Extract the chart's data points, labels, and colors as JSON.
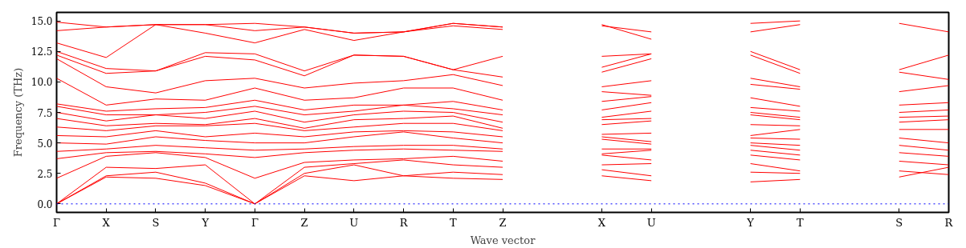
{
  "chart_data": {
    "type": "line",
    "ylabel": "Frequency (THz)",
    "xlabel": "Wave vector",
    "categories": [
      "Γ",
      "X",
      "S",
      "Y",
      "Γ",
      "Z",
      "U",
      "R",
      "T",
      "Z",
      null,
      "X",
      "U",
      null,
      "Y",
      "T",
      null,
      "S",
      "R"
    ],
    "ylim": [
      -0.7,
      15.7
    ],
    "yticks": [
      {
        "value": 0,
        "label": "0.0"
      },
      {
        "value": 2.5,
        "label": "2.5"
      },
      {
        "value": 5,
        "label": "5.0"
      },
      {
        "value": 7.5,
        "label": "7.5"
      },
      {
        "value": 10,
        "label": "10.0"
      },
      {
        "value": 12.5,
        "label": "12.5"
      },
      {
        "value": 15,
        "label": "15.0"
      }
    ],
    "grid": false,
    "line_style": "solid",
    "ref_lines": [
      {
        "axis": "y",
        "value": 0,
        "color": "#0000ff",
        "line_style": "dotted"
      }
    ],
    "series": [
      {
        "color": "#ff0000",
        "values": [
          0,
          2.2,
          2.1,
          1.5,
          0,
          2.3,
          1.9,
          2.3,
          2.1,
          2.0,
          null,
          null,
          null,
          null,
          null,
          null,
          null,
          null,
          null
        ]
      },
      {
        "color": "#ff0000",
        "values": [
          0,
          2.3,
          2.6,
          1.7,
          0,
          2.5,
          3.2,
          2.3,
          2.6,
          2.4,
          null,
          null,
          null,
          null,
          null,
          null,
          null,
          null,
          null
        ]
      },
      {
        "color": "#ff0000",
        "values": [
          0,
          3.0,
          2.9,
          3.2,
          0,
          3.0,
          3.3,
          3.6,
          3.2,
          3.0,
          null,
          null,
          null,
          null,
          null,
          null,
          null,
          null,
          null
        ]
      },
      {
        "color": "#ff0000",
        "values": [
          2.1,
          3.9,
          4.2,
          3.8,
          2.1,
          3.4,
          3.6,
          3.7,
          3.9,
          3.5,
          null,
          null,
          null,
          null,
          null,
          null,
          null,
          null,
          null
        ]
      },
      {
        "color": "#ff0000",
        "values": [
          3.7,
          4.2,
          4.3,
          4.1,
          3.8,
          4.2,
          4.4,
          4.5,
          4.4,
          4.3,
          null,
          null,
          null,
          null,
          null,
          null,
          null,
          null,
          null
        ]
      },
      {
        "color": "#ff0000",
        "values": [
          4.3,
          4.5,
          4.8,
          4.6,
          4.4,
          4.5,
          4.7,
          4.8,
          4.8,
          4.5,
          null,
          null,
          null,
          null,
          null,
          null,
          null,
          null,
          null
        ]
      },
      {
        "color": "#ff0000",
        "values": [
          5.0,
          4.9,
          5.5,
          5.2,
          5.0,
          5.0,
          5.5,
          5.9,
          5.4,
          5.0,
          null,
          null,
          null,
          null,
          null,
          null,
          null,
          null,
          null
        ]
      },
      {
        "color": "#ff0000",
        "values": [
          5.6,
          5.5,
          6.0,
          5.5,
          5.8,
          5.5,
          5.9,
          6.0,
          5.9,
          5.5,
          null,
          null,
          null,
          null,
          null,
          null,
          null,
          null,
          null
        ]
      },
      {
        "color": "#ff0000",
        "values": [
          6.3,
          6.0,
          6.4,
          6.4,
          6.6,
          6.0,
          6.3,
          6.6,
          6.6,
          6.0,
          null,
          null,
          null,
          null,
          null,
          null,
          null,
          null,
          null
        ]
      },
      {
        "color": "#ff0000",
        "values": [
          7.0,
          6.4,
          6.6,
          6.5,
          7.0,
          6.2,
          6.9,
          7.0,
          7.2,
          6.2,
          null,
          null,
          null,
          null,
          null,
          null,
          null,
          null,
          null
        ]
      },
      {
        "color": "#ff0000",
        "values": [
          7.5,
          6.8,
          7.3,
          7.0,
          7.6,
          6.7,
          7.3,
          7.6,
          7.5,
          6.7,
          null,
          null,
          null,
          null,
          null,
          null,
          null,
          null,
          null
        ]
      },
      {
        "color": "#ff0000",
        "values": [
          8.0,
          7.3,
          7.3,
          7.5,
          8.0,
          7.3,
          7.6,
          8.1,
          7.8,
          7.3,
          null,
          null,
          null,
          null,
          null,
          null,
          null,
          null,
          null
        ]
      },
      {
        "color": "#ff0000",
        "values": [
          8.2,
          7.6,
          7.8,
          7.9,
          8.5,
          7.7,
          8.1,
          8.1,
          8.4,
          7.7,
          null,
          null,
          null,
          null,
          null,
          null,
          null,
          null,
          null
        ]
      },
      {
        "color": "#ff0000",
        "values": [
          10.3,
          8.1,
          8.6,
          8.5,
          9.5,
          8.5,
          8.7,
          9.5,
          9.5,
          8.5,
          null,
          null,
          null,
          null,
          null,
          null,
          null,
          null,
          null
        ]
      },
      {
        "color": "#ff0000",
        "values": [
          11.9,
          9.6,
          9.1,
          10.1,
          10.3,
          9.5,
          9.9,
          10.1,
          10.6,
          9.7,
          null,
          null,
          null,
          null,
          null,
          null,
          null,
          null,
          null
        ]
      },
      {
        "color": "#ff0000",
        "values": [
          12.2,
          10.7,
          10.9,
          12.1,
          11.8,
          10.5,
          12.2,
          12.1,
          11.0,
          10.4,
          null,
          null,
          null,
          null,
          null,
          null,
          null,
          null,
          null
        ]
      },
      {
        "color": "#ff0000",
        "values": [
          12.5,
          11.1,
          10.9,
          12.4,
          12.3,
          10.9,
          12.2,
          12.1,
          11.0,
          12.1,
          null,
          null,
          null,
          null,
          null,
          null,
          null,
          null,
          null
        ]
      },
      {
        "color": "#ff0000",
        "values": [
          13.2,
          12.0,
          14.7,
          14.0,
          13.2,
          14.3,
          13.4,
          14.1,
          14.6,
          14.3,
          null,
          null,
          null,
          null,
          null,
          null,
          null,
          null,
          null
        ]
      },
      {
        "color": "#ff0000",
        "values": [
          14.2,
          14.5,
          14.7,
          14.7,
          14.2,
          14.5,
          14.0,
          14.1,
          14.8,
          14.5,
          null,
          null,
          null,
          null,
          null,
          null,
          null,
          null,
          null
        ]
      },
      {
        "color": "#ff0000",
        "values": [
          14.9,
          14.5,
          14.7,
          14.7,
          14.8,
          14.5,
          14.0,
          14.1,
          14.8,
          14.5,
          null,
          null,
          null,
          null,
          null,
          null,
          null,
          null,
          null
        ]
      },
      {
        "color": "#ff0000",
        "values": [
          null,
          null,
          null,
          null,
          null,
          null,
          null,
          null,
          null,
          null,
          null,
          2.3,
          1.9,
          null,
          null,
          null,
          null,
          null,
          null
        ]
      },
      {
        "color": "#ff0000",
        "values": [
          null,
          null,
          null,
          null,
          null,
          null,
          null,
          null,
          null,
          null,
          null,
          2.8,
          2.3,
          null,
          null,
          null,
          null,
          null,
          null
        ]
      },
      {
        "color": "#ff0000",
        "values": [
          null,
          null,
          null,
          null,
          null,
          null,
          null,
          null,
          null,
          null,
          null,
          3.2,
          3.3,
          null,
          null,
          null,
          null,
          null,
          null
        ]
      },
      {
        "color": "#ff0000",
        "values": [
          null,
          null,
          null,
          null,
          null,
          null,
          null,
          null,
          null,
          null,
          null,
          4.0,
          3.6,
          null,
          null,
          null,
          null,
          null,
          null
        ]
      },
      {
        "color": "#ff0000",
        "values": [
          null,
          null,
          null,
          null,
          null,
          null,
          null,
          null,
          null,
          null,
          null,
          4.1,
          4.4,
          null,
          null,
          null,
          null,
          null,
          null
        ]
      },
      {
        "color": "#ff0000",
        "values": [
          null,
          null,
          null,
          null,
          null,
          null,
          null,
          null,
          null,
          null,
          null,
          4.5,
          4.5,
          null,
          null,
          null,
          null,
          null,
          null
        ]
      },
      {
        "color": "#ff0000",
        "values": [
          null,
          null,
          null,
          null,
          null,
          null,
          null,
          null,
          null,
          null,
          null,
          5.3,
          4.9,
          null,
          null,
          null,
          null,
          null,
          null
        ]
      },
      {
        "color": "#ff0000",
        "values": [
          null,
          null,
          null,
          null,
          null,
          null,
          null,
          null,
          null,
          null,
          null,
          5.5,
          5.1,
          null,
          null,
          null,
          null,
          null,
          null
        ]
      },
      {
        "color": "#ff0000",
        "values": [
          null,
          null,
          null,
          null,
          null,
          null,
          null,
          null,
          null,
          null,
          null,
          5.7,
          5.8,
          null,
          null,
          null,
          null,
          null,
          null
        ]
      },
      {
        "color": "#ff0000",
        "values": [
          null,
          null,
          null,
          null,
          null,
          null,
          null,
          null,
          null,
          null,
          null,
          6.5,
          6.8,
          null,
          null,
          null,
          null,
          null,
          null
        ]
      },
      {
        "color": "#ff0000",
        "values": [
          null,
          null,
          null,
          null,
          null,
          null,
          null,
          null,
          null,
          null,
          null,
          6.9,
          7.0,
          null,
          null,
          null,
          null,
          null,
          null
        ]
      },
      {
        "color": "#ff0000",
        "values": [
          null,
          null,
          null,
          null,
          null,
          null,
          null,
          null,
          null,
          null,
          null,
          7.1,
          7.6,
          null,
          null,
          null,
          null,
          null,
          null
        ]
      },
      {
        "color": "#ff0000",
        "values": [
          null,
          null,
          null,
          null,
          null,
          null,
          null,
          null,
          null,
          null,
          null,
          7.7,
          8.3,
          null,
          null,
          null,
          null,
          null,
          null
        ]
      },
      {
        "color": "#ff0000",
        "values": [
          null,
          null,
          null,
          null,
          null,
          null,
          null,
          null,
          null,
          null,
          null,
          8.4,
          8.8,
          null,
          null,
          null,
          null,
          null,
          null
        ]
      },
      {
        "color": "#ff0000",
        "values": [
          null,
          null,
          null,
          null,
          null,
          null,
          null,
          null,
          null,
          null,
          null,
          9.2,
          8.9,
          null,
          null,
          null,
          null,
          null,
          null
        ]
      },
      {
        "color": "#ff0000",
        "values": [
          null,
          null,
          null,
          null,
          null,
          null,
          null,
          null,
          null,
          null,
          null,
          9.6,
          10.1,
          null,
          null,
          null,
          null,
          null,
          null
        ]
      },
      {
        "color": "#ff0000",
        "values": [
          null,
          null,
          null,
          null,
          null,
          null,
          null,
          null,
          null,
          null,
          null,
          10.8,
          11.9,
          null,
          null,
          null,
          null,
          null,
          null
        ]
      },
      {
        "color": "#ff0000",
        "values": [
          null,
          null,
          null,
          null,
          null,
          null,
          null,
          null,
          null,
          null,
          null,
          11.2,
          12.3,
          null,
          null,
          null,
          null,
          null,
          null
        ]
      },
      {
        "color": "#ff0000",
        "values": [
          null,
          null,
          null,
          null,
          null,
          null,
          null,
          null,
          null,
          null,
          null,
          12.1,
          12.3,
          null,
          null,
          null,
          null,
          null,
          null
        ]
      },
      {
        "color": "#ff0000",
        "values": [
          null,
          null,
          null,
          null,
          null,
          null,
          null,
          null,
          null,
          null,
          null,
          14.7,
          13.5,
          null,
          null,
          null,
          null,
          null,
          null
        ]
      },
      {
        "color": "#ff0000",
        "values": [
          null,
          null,
          null,
          null,
          null,
          null,
          null,
          null,
          null,
          null,
          null,
          14.6,
          14.1,
          null,
          null,
          null,
          null,
          null,
          null
        ]
      },
      {
        "color": "#ff0000",
        "values": [
          null,
          null,
          null,
          null,
          null,
          null,
          null,
          null,
          null,
          null,
          null,
          null,
          null,
          null,
          1.8,
          2.0,
          null,
          null,
          null
        ]
      },
      {
        "color": "#ff0000",
        "values": [
          null,
          null,
          null,
          null,
          null,
          null,
          null,
          null,
          null,
          null,
          null,
          null,
          null,
          null,
          2.6,
          2.5,
          null,
          null,
          null
        ]
      },
      {
        "color": "#ff0000",
        "values": [
          null,
          null,
          null,
          null,
          null,
          null,
          null,
          null,
          null,
          null,
          null,
          null,
          null,
          null,
          3.3,
          2.7,
          null,
          null,
          null
        ]
      },
      {
        "color": "#ff0000",
        "values": [
          null,
          null,
          null,
          null,
          null,
          null,
          null,
          null,
          null,
          null,
          null,
          null,
          null,
          null,
          4.0,
          3.6,
          null,
          null,
          null
        ]
      },
      {
        "color": "#ff0000",
        "values": [
          null,
          null,
          null,
          null,
          null,
          null,
          null,
          null,
          null,
          null,
          null,
          null,
          null,
          null,
          4.4,
          4.0,
          null,
          null,
          null
        ]
      },
      {
        "color": "#ff0000",
        "values": [
          null,
          null,
          null,
          null,
          null,
          null,
          null,
          null,
          null,
          null,
          null,
          null,
          null,
          null,
          4.8,
          4.4,
          null,
          null,
          null
        ]
      },
      {
        "color": "#ff0000",
        "values": [
          null,
          null,
          null,
          null,
          null,
          null,
          null,
          null,
          null,
          null,
          null,
          null,
          null,
          null,
          5.0,
          4.8,
          null,
          null,
          null
        ]
      },
      {
        "color": "#ff0000",
        "values": [
          null,
          null,
          null,
          null,
          null,
          null,
          null,
          null,
          null,
          null,
          null,
          null,
          null,
          null,
          5.4,
          5.3,
          null,
          null,
          null
        ]
      },
      {
        "color": "#ff0000",
        "values": [
          null,
          null,
          null,
          null,
          null,
          null,
          null,
          null,
          null,
          null,
          null,
          null,
          null,
          null,
          5.6,
          6.1,
          null,
          null,
          null
        ]
      },
      {
        "color": "#ff0000",
        "values": [
          null,
          null,
          null,
          null,
          null,
          null,
          null,
          null,
          null,
          null,
          null,
          null,
          null,
          null,
          6.5,
          6.4,
          null,
          null,
          null
        ]
      },
      {
        "color": "#ff0000",
        "values": [
          null,
          null,
          null,
          null,
          null,
          null,
          null,
          null,
          null,
          null,
          null,
          null,
          null,
          null,
          7.3,
          6.9,
          null,
          null,
          null
        ]
      },
      {
        "color": "#ff0000",
        "values": [
          null,
          null,
          null,
          null,
          null,
          null,
          null,
          null,
          null,
          null,
          null,
          null,
          null,
          null,
          7.5,
          7.1,
          null,
          null,
          null
        ]
      },
      {
        "color": "#ff0000",
        "values": [
          null,
          null,
          null,
          null,
          null,
          null,
          null,
          null,
          null,
          null,
          null,
          null,
          null,
          null,
          7.9,
          7.6,
          null,
          null,
          null
        ]
      },
      {
        "color": "#ff0000",
        "values": [
          null,
          null,
          null,
          null,
          null,
          null,
          null,
          null,
          null,
          null,
          null,
          null,
          null,
          null,
          8.7,
          8.0,
          null,
          null,
          null
        ]
      },
      {
        "color": "#ff0000",
        "values": [
          null,
          null,
          null,
          null,
          null,
          null,
          null,
          null,
          null,
          null,
          null,
          null,
          null,
          null,
          9.8,
          9.4,
          null,
          null,
          null
        ]
      },
      {
        "color": "#ff0000",
        "values": [
          null,
          null,
          null,
          null,
          null,
          null,
          null,
          null,
          null,
          null,
          null,
          null,
          null,
          null,
          10.3,
          9.6,
          null,
          null,
          null
        ]
      },
      {
        "color": "#ff0000",
        "values": [
          null,
          null,
          null,
          null,
          null,
          null,
          null,
          null,
          null,
          null,
          null,
          null,
          null,
          null,
          12.2,
          10.7,
          null,
          null,
          null
        ]
      },
      {
        "color": "#ff0000",
        "values": [
          null,
          null,
          null,
          null,
          null,
          null,
          null,
          null,
          null,
          null,
          null,
          null,
          null,
          null,
          12.5,
          11.0,
          null,
          null,
          null
        ]
      },
      {
        "color": "#ff0000",
        "values": [
          null,
          null,
          null,
          null,
          null,
          null,
          null,
          null,
          null,
          null,
          null,
          null,
          null,
          null,
          14.1,
          14.7,
          null,
          null,
          null
        ]
      },
      {
        "color": "#ff0000",
        "values": [
          null,
          null,
          null,
          null,
          null,
          null,
          null,
          null,
          null,
          null,
          null,
          null,
          null,
          null,
          14.8,
          15.0,
          null,
          null,
          null
        ]
      },
      {
        "color": "#ff0000",
        "values": [
          null,
          null,
          null,
          null,
          null,
          null,
          null,
          null,
          null,
          null,
          null,
          null,
          null,
          null,
          null,
          null,
          null,
          2.2,
          3.0
        ]
      },
      {
        "color": "#ff0000",
        "values": [
          null,
          null,
          null,
          null,
          null,
          null,
          null,
          null,
          null,
          null,
          null,
          null,
          null,
          null,
          null,
          null,
          null,
          2.7,
          2.4
        ]
      },
      {
        "color": "#ff0000",
        "values": [
          null,
          null,
          null,
          null,
          null,
          null,
          null,
          null,
          null,
          null,
          null,
          null,
          null,
          null,
          null,
          null,
          null,
          3.5,
          3.2
        ]
      },
      {
        "color": "#ff0000",
        "values": [
          null,
          null,
          null,
          null,
          null,
          null,
          null,
          null,
          null,
          null,
          null,
          null,
          null,
          null,
          null,
          null,
          null,
          4.2,
          3.9
        ]
      },
      {
        "color": "#ff0000",
        "values": [
          null,
          null,
          null,
          null,
          null,
          null,
          null,
          null,
          null,
          null,
          null,
          null,
          null,
          null,
          null,
          null,
          null,
          4.8,
          4.4
        ]
      },
      {
        "color": "#ff0000",
        "values": [
          null,
          null,
          null,
          null,
          null,
          null,
          null,
          null,
          null,
          null,
          null,
          null,
          null,
          null,
          null,
          null,
          null,
          5.4,
          5.0
        ]
      },
      {
        "color": "#ff0000",
        "values": [
          null,
          null,
          null,
          null,
          null,
          null,
          null,
          null,
          null,
          null,
          null,
          null,
          null,
          null,
          null,
          null,
          null,
          6.1,
          6.1
        ]
      },
      {
        "color": "#ff0000",
        "values": [
          null,
          null,
          null,
          null,
          null,
          null,
          null,
          null,
          null,
          null,
          null,
          null,
          null,
          null,
          null,
          null,
          null,
          6.7,
          6.9
        ]
      },
      {
        "color": "#ff0000",
        "values": [
          null,
          null,
          null,
          null,
          null,
          null,
          null,
          null,
          null,
          null,
          null,
          null,
          null,
          null,
          null,
          null,
          null,
          7.1,
          7.2
        ]
      },
      {
        "color": "#ff0000",
        "values": [
          null,
          null,
          null,
          null,
          null,
          null,
          null,
          null,
          null,
          null,
          null,
          null,
          null,
          null,
          null,
          null,
          null,
          7.5,
          7.7
        ]
      },
      {
        "color": "#ff0000",
        "values": [
          null,
          null,
          null,
          null,
          null,
          null,
          null,
          null,
          null,
          null,
          null,
          null,
          null,
          null,
          null,
          null,
          null,
          8.1,
          8.3
        ]
      },
      {
        "color": "#ff0000",
        "values": [
          null,
          null,
          null,
          null,
          null,
          null,
          null,
          null,
          null,
          null,
          null,
          null,
          null,
          null,
          null,
          null,
          null,
          9.2,
          9.7
        ]
      },
      {
        "color": "#ff0000",
        "values": [
          null,
          null,
          null,
          null,
          null,
          null,
          null,
          null,
          null,
          null,
          null,
          null,
          null,
          null,
          null,
          null,
          null,
          10.8,
          10.2
        ]
      },
      {
        "color": "#ff0000",
        "values": [
          null,
          null,
          null,
          null,
          null,
          null,
          null,
          null,
          null,
          null,
          null,
          null,
          null,
          null,
          null,
          null,
          null,
          11.0,
          12.2
        ]
      },
      {
        "color": "#ff0000",
        "values": [
          null,
          null,
          null,
          null,
          null,
          null,
          null,
          null,
          null,
          null,
          null,
          null,
          null,
          null,
          null,
          null,
          null,
          14.8,
          14.1
        ]
      }
    ]
  }
}
